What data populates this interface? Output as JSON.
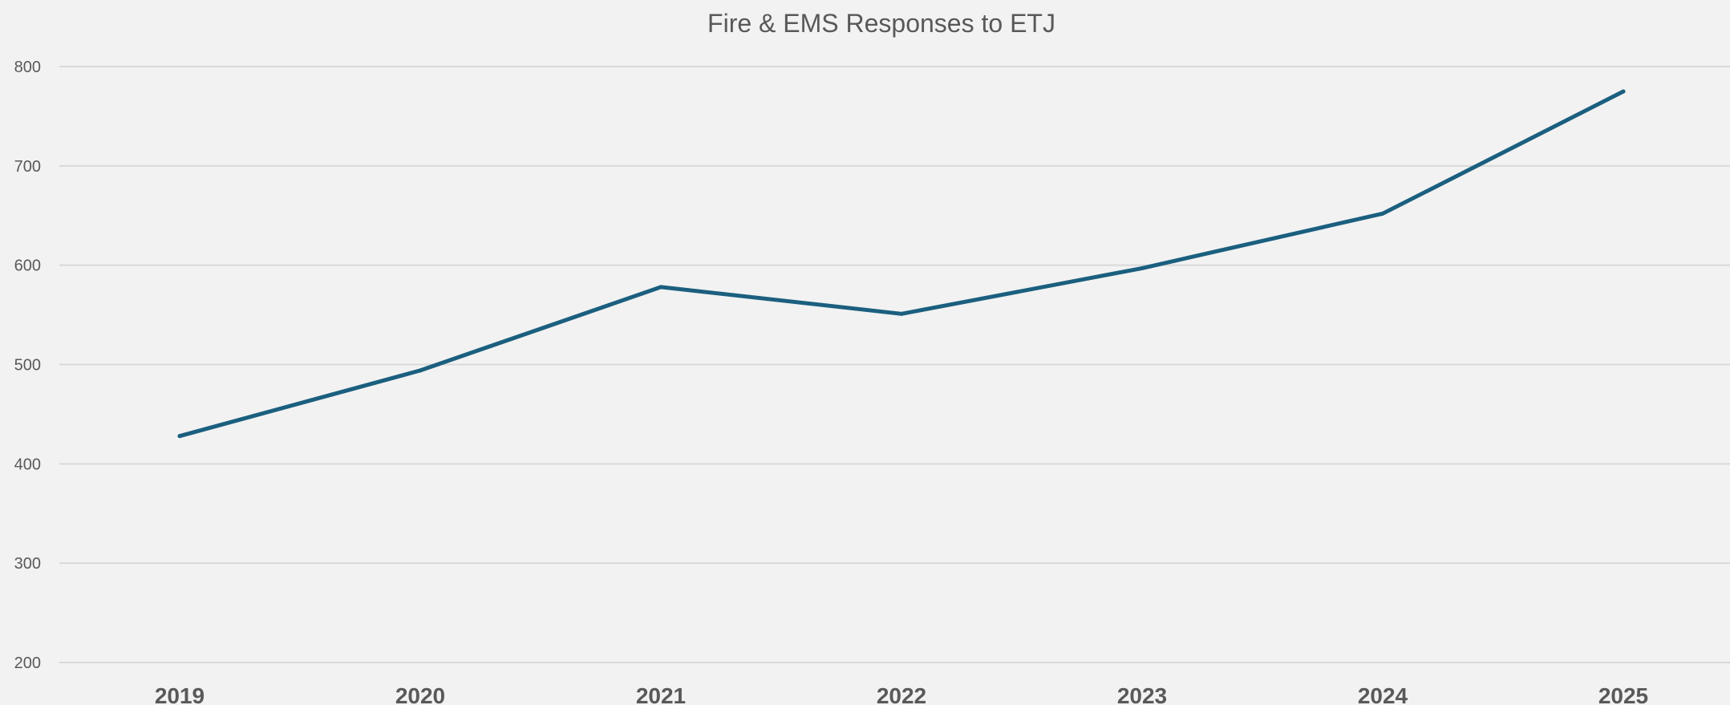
{
  "chart_data": {
    "type": "line",
    "title": "Fire & EMS Responses to ETJ",
    "xlabel": "",
    "ylabel": "",
    "categories": [
      "2019",
      "2020",
      "2021",
      "2022",
      "2023",
      "2024",
      "2025"
    ],
    "series": [
      {
        "values": [
          428,
          494,
          578,
          551,
          597,
          652,
          775
        ]
      }
    ],
    "ylim": [
      200,
      800
    ],
    "yticks": [
      "200",
      "300",
      "400",
      "500",
      "600",
      "700",
      "800"
    ],
    "grid": true,
    "legend": "none",
    "colors": {
      "line": "#1b5f7f",
      "grid": "#d9d9d9",
      "background": "#f2f2f2",
      "text": "#595959"
    }
  }
}
